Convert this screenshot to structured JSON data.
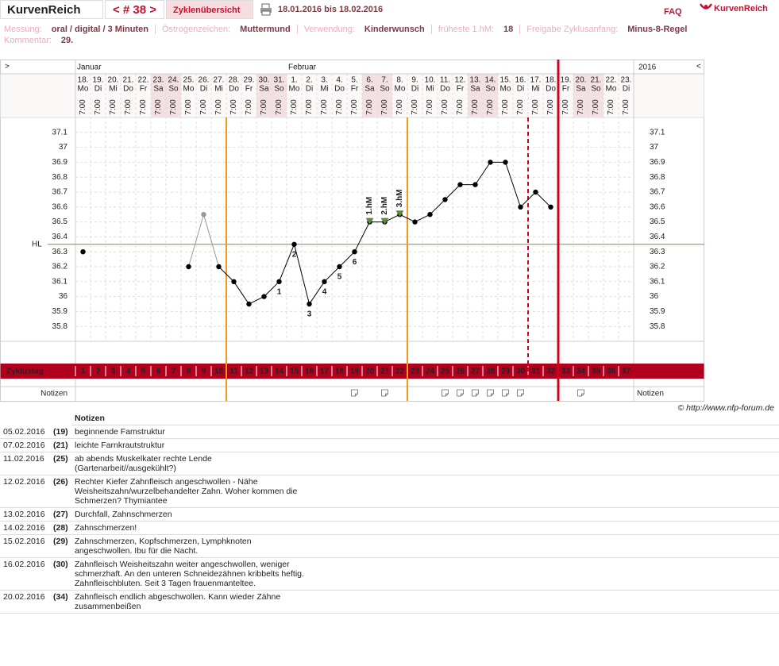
{
  "header": {
    "app": "KurvenReich",
    "cycle_nav": "< # 38 >",
    "overview": "Zyklenübersicht",
    "range": "18.01.2016 bis 18.02.2016",
    "faq": "FAQ",
    "logo": "KurvenReich"
  },
  "info": {
    "items": [
      {
        "label": "Messung:",
        "value": "oral / digital / 3 Minuten"
      },
      {
        "label": "Östrogenzeichen:",
        "value": "Muttermund"
      },
      {
        "label": "Verwendung:",
        "value": "Kinderwunsch"
      },
      {
        "label": "früheste 1.hM:",
        "value": "18"
      },
      {
        "label": "Freigabe Zyklusanfang:",
        "value": "Minus-8-Regel"
      }
    ],
    "comment_label": "Kommentar:",
    "comment": "29."
  },
  "chart": {
    "type": "line",
    "nav_left": ">",
    "nav_right": "<",
    "year": "2016",
    "months": [
      {
        "label": "Januar",
        "index": 0
      },
      {
        "label": "Februar",
        "index": 14
      }
    ],
    "dates": [
      "18.",
      "19.",
      "20.",
      "21.",
      "22.",
      "23.",
      "24.",
      "25.",
      "26.",
      "27.",
      "28.",
      "29.",
      "30.",
      "31.",
      "1.",
      "2.",
      "3.",
      "4.",
      "5.",
      "6.",
      "7.",
      "8.",
      "9.",
      "10.",
      "11.",
      "12.",
      "13.",
      "14.",
      "15.",
      "16.",
      "17.",
      "18.",
      "19.",
      "20.",
      "21.",
      "22.",
      "23."
    ],
    "weekdays": [
      "Mo",
      "Di",
      "Mi",
      "Do",
      "Fr",
      "Sa",
      "So",
      "Mo",
      "Di",
      "Mi",
      "Do",
      "Fr",
      "Sa",
      "So",
      "Mo",
      "Di",
      "Mi",
      "Do",
      "Fr",
      "Sa",
      "So",
      "Mo",
      "Di",
      "Mi",
      "Do",
      "Fr",
      "Sa",
      "So",
      "Mo",
      "Di",
      "Mi",
      "Do",
      "Fr",
      "Sa",
      "So",
      "Mo",
      "Di"
    ],
    "times": [
      "7:00",
      "7:00",
      "7:00",
      "7:00",
      "7:00",
      "7:00",
      "7:00",
      "7:00",
      "7:00",
      "7:00",
      "7:00",
      "7:00",
      "7:00",
      "7:00",
      "7:00",
      "7:00",
      "7:00",
      "7:00",
      "7:00",
      "7:00",
      "7:00",
      "7:00",
      "7:00",
      "7:00",
      "7:00",
      "7:00",
      "7:00",
      "7:00",
      "7:00",
      "7:00",
      "7:00",
      "7:00",
      "7:00",
      "7:00",
      "7:00",
      "7:00",
      "7:00"
    ],
    "values": [
      36.3,
      null,
      null,
      null,
      null,
      null,
      null,
      36.2,
      36.55,
      36.2,
      36.1,
      35.95,
      36.0,
      36.1,
      36.35,
      35.95,
      36.1,
      36.2,
      36.3,
      36.5,
      36.5,
      36.55,
      36.5,
      36.55,
      36.65,
      36.75,
      36.75,
      36.9,
      36.9,
      36.6,
      36.7,
      36.6,
      null,
      null,
      null,
      null,
      null
    ],
    "color": "#000000",
    "excluded_index": [
      8
    ],
    "excluded_color": "#999999",
    "ylim": [
      35.7,
      37.2
    ],
    "yticks": [
      37.1,
      37,
      36.9,
      36.8,
      36.7,
      36.6,
      36.5,
      36.4,
      36.3,
      36.2,
      36.1,
      36,
      35.9,
      35.8
    ],
    "cover_line": 36.35,
    "cover_label": "HL",
    "cover_color": "#6a9a3a",
    "low_numbers": [
      {
        "index": 13,
        "label": "1"
      },
      {
        "index": 14,
        "label": "2"
      },
      {
        "index": 15,
        "label": "3"
      },
      {
        "index": 16,
        "label": "4"
      },
      {
        "index": 17,
        "label": "5"
      },
      {
        "index": 18,
        "label": "6"
      }
    ],
    "high_marks": [
      {
        "index": 19,
        "label": "1.hM"
      },
      {
        "index": 20,
        "label": "2.hM"
      },
      {
        "index": 21,
        "label": "3.hM"
      }
    ],
    "markers": [
      {
        "after": 10,
        "color": "#f7941d",
        "dashed": false
      },
      {
        "after": 22,
        "color": "#f7941d",
        "dashed": false
      },
      {
        "after": 30,
        "color": "#d0021b",
        "dashed": true
      },
      {
        "after": 32,
        "color": "#d0021b",
        "dashed": false
      }
    ],
    "cycle_label": "Zyklustag",
    "cycle_days": [
      1,
      2,
      3,
      4,
      5,
      6,
      7,
      8,
      9,
      10,
      11,
      12,
      13,
      14,
      15,
      16,
      17,
      18,
      19,
      20,
      21,
      22,
      23,
      24,
      25,
      26,
      27,
      28,
      29,
      30,
      31,
      32,
      33,
      34,
      35,
      36,
      37
    ],
    "highlighted": [
      10,
      11,
      12,
      13,
      14,
      15,
      16,
      17,
      18,
      19,
      20
    ],
    "highlight_color": "#ffcc00",
    "notes_label": "Notizen",
    "note_indices": [
      18,
      20,
      24,
      25,
      26,
      27,
      28,
      29,
      33
    ]
  },
  "copyright": "© http://www.nfp-forum.de",
  "notes": {
    "title": "Notizen",
    "rows": [
      [
        "05.02.2016",
        "(19)",
        "beginnende Famstruktur"
      ],
      [
        "07.02.2016",
        "(21)",
        "leichte Farnkrautstruktur"
      ],
      [
        "11.02.2016",
        "(25)",
        "ab abends Muskelkater rechte Lende (Gartenarbeit//ausgekühlt?)"
      ],
      [
        "12.02.2016",
        "(26)",
        "Rechter Kiefer Zahnfleisch angeschwollen - Nähe Weisheitszahn/wurzelbehandelter Zahn. Woher kommen die Schmerzen? Thymiantee"
      ],
      [
        "13.02.2016",
        "(27)",
        "Durchfall, Zahnschmerzen"
      ],
      [
        "14.02.2016",
        "(28)",
        "Zahnschmerzen!"
      ],
      [
        "15.02.2016",
        "(29)",
        "Zahnschmerzen, Kopfschmerzen, Lymphknoten angeschwollen. Ibu für die Nacht."
      ],
      [
        "16.02.2016",
        "(30)",
        "Zahnfleisch Weisheitszahn weiter angeschwollen, weniger schmerzhaft. An den unteren Schneidezähnen kribbelts heftig. Zahnfleischbluten. Seit 3 Tagen frauenmanteltee."
      ],
      [
        "20.02.2016",
        "(34)",
        "Zahnfleisch endlich abgeschwollen. Kann wieder Zähne zusammenbeißen"
      ]
    ]
  }
}
